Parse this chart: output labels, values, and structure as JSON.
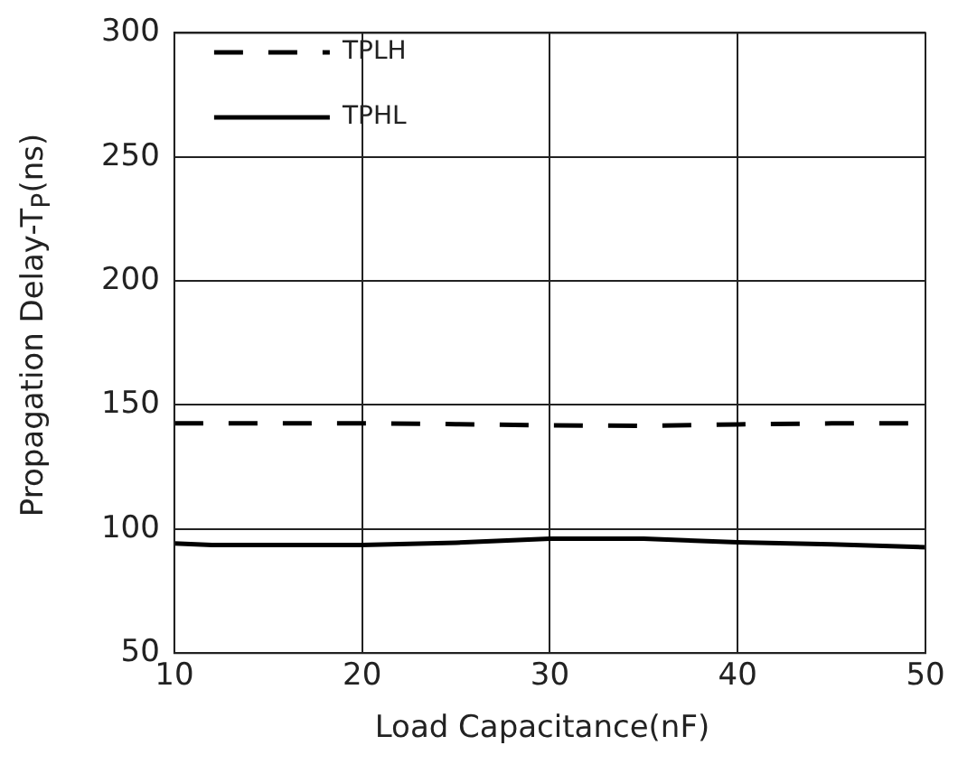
{
  "chart_data": {
    "type": "line",
    "xlabel": "Load Capacitance(nF)",
    "ylabel": "Propagation Delay-T$_{P}$(ns)",
    "xlim": [
      10,
      50
    ],
    "xticks": [
      10,
      20,
      30,
      40,
      50
    ],
    "ylim": [
      50,
      300
    ],
    "yticks": [
      50,
      100,
      150,
      200,
      250,
      300
    ],
    "grid": true,
    "legend": "top left",
    "marker": "none",
    "series": [
      {
        "name": "TPLH",
        "color": "#000000",
        "line_style": "dashed",
        "x": [
          10,
          15,
          20,
          25,
          30,
          35,
          40,
          45,
          50
        ],
        "values": [
          142.6,
          142.6,
          142.6,
          142.3,
          141.8,
          141.6,
          142.2,
          142.6,
          142.6
        ]
      },
      {
        "name": "TPHL",
        "color": "#000000",
        "line_style": "solid",
        "x": [
          10,
          12,
          20,
          25,
          30,
          35,
          40,
          45,
          50
        ],
        "values": [
          94.2,
          93.6,
          93.6,
          94.5,
          96.1,
          96.1,
          94.7,
          93.8,
          92.7
        ]
      }
    ]
  }
}
